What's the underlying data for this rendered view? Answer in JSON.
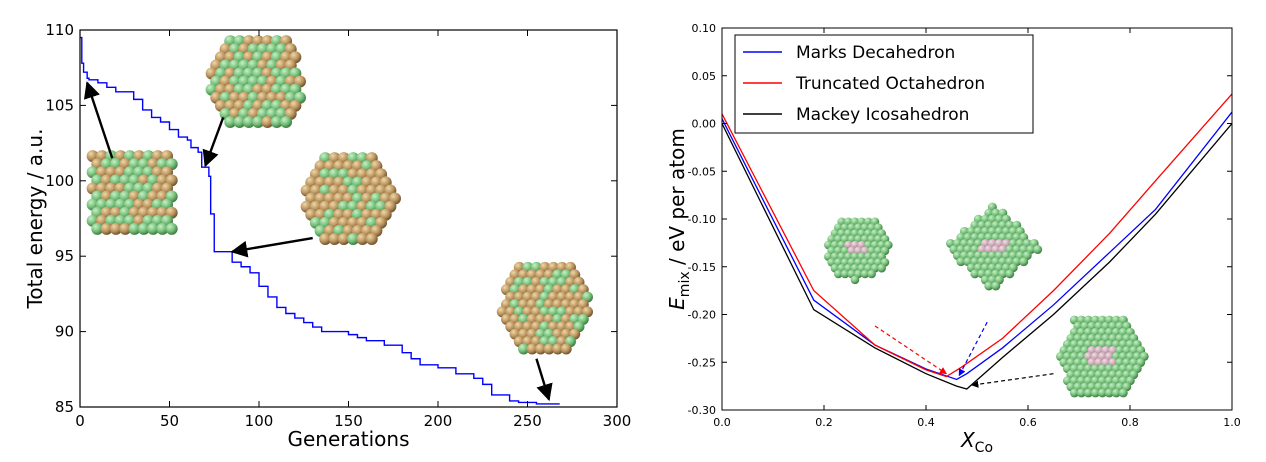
{
  "chart_data": [
    {
      "type": "line",
      "title": "",
      "xlabel": "Generations",
      "ylabel": "Total energy / a.u.",
      "xlim": [
        0,
        300
      ],
      "ylim": [
        85,
        110
      ],
      "xticks": [
        "0",
        "50",
        "100",
        "150",
        "200",
        "250",
        "300"
      ],
      "yticks": [
        "85",
        "90",
        "95",
        "100",
        "105",
        "110"
      ],
      "grid": false,
      "series": [
        {
          "color": "#0000ff",
          "x": [
            0,
            1,
            2,
            4,
            5,
            8,
            10,
            15,
            20,
            22,
            30,
            35,
            40,
            45,
            50,
            55,
            60,
            62,
            66,
            68,
            70,
            72,
            73,
            75,
            80,
            85,
            90,
            95,
            100,
            105,
            110,
            115,
            120,
            125,
            130,
            135,
            150,
            155,
            160,
            170,
            180,
            185,
            190,
            200,
            210,
            220,
            225,
            230,
            240,
            245,
            250,
            255,
            260,
            268
          ],
          "values": [
            109.5,
            107.8,
            107.2,
            106.8,
            106.7,
            106.7,
            106.5,
            106.2,
            105.9,
            105.9,
            105.4,
            104.7,
            104.2,
            103.9,
            103.4,
            102.9,
            102.7,
            102.2,
            101.9,
            100.9,
            100.9,
            100.3,
            97.8,
            95.3,
            95.3,
            94.6,
            94.3,
            93.9,
            93.0,
            92.3,
            91.6,
            91.2,
            90.9,
            90.6,
            90.3,
            90.0,
            89.8,
            89.6,
            89.4,
            89.1,
            88.6,
            88.2,
            87.8,
            87.6,
            87.2,
            86.9,
            86.5,
            85.8,
            85.4,
            85.3,
            85.3,
            85.2,
            85.2,
            85.2
          ]
        }
      ],
      "annotations": [
        {
          "kind": "arrow",
          "from": [
            18,
            101.5
          ],
          "to": [
            4,
            106.5
          ]
        },
        {
          "kind": "arrow",
          "from": [
            80,
            104.2
          ],
          "to": [
            70,
            101.0
          ]
        },
        {
          "kind": "arrow",
          "from": [
            130,
            96.2
          ],
          "to": [
            85,
            95.3
          ]
        },
        {
          "kind": "arrow",
          "from": [
            255,
            88.2
          ],
          "to": [
            262,
            85.5
          ]
        }
      ],
      "insets": [
        {
          "name": "cube-cluster",
          "style": "cube"
        },
        {
          "name": "top-cluster",
          "style": "hex"
        },
        {
          "name": "middle-cluster",
          "style": "hex"
        },
        {
          "name": "final-cluster",
          "style": "hex"
        }
      ]
    },
    {
      "type": "line",
      "title": "",
      "xlabel": "X_Co",
      "ylabel": "E_mix / eV per atom",
      "xlim": [
        0.0,
        1.0
      ],
      "ylim": [
        -0.3,
        0.1
      ],
      "xticks": [
        "0.0",
        "0.2",
        "0.4",
        "0.6",
        "0.8",
        "1.0"
      ],
      "yticks": [
        "0.10",
        "0.05",
        "0.00",
        "-0.05",
        "-0.10",
        "-0.15",
        "-0.20",
        "-0.25",
        "-0.30"
      ],
      "grid": false,
      "legend": {
        "placement": "top-left"
      },
      "series": [
        {
          "name": "Marks Decahedron",
          "color": "#0000ff",
          "x": [
            0.0,
            0.18,
            0.3,
            0.4,
            0.46,
            0.48,
            0.55,
            0.65,
            0.76,
            0.85,
            1.0
          ],
          "values": [
            0.005,
            -0.185,
            -0.232,
            -0.257,
            -0.268,
            -0.262,
            -0.235,
            -0.19,
            -0.135,
            -0.09,
            0.012
          ]
        },
        {
          "name": "Truncated Octahedron",
          "color": "#ff0000",
          "x": [
            0.0,
            0.18,
            0.3,
            0.4,
            0.44,
            0.47,
            0.55,
            0.65,
            0.76,
            0.85,
            1.0
          ],
          "values": [
            0.01,
            -0.175,
            -0.232,
            -0.258,
            -0.265,
            -0.255,
            -0.225,
            -0.175,
            -0.115,
            -0.06,
            0.031
          ]
        },
        {
          "name": "Mackey Icosahedron",
          "color": "#000000",
          "x": [
            0.0,
            0.18,
            0.3,
            0.4,
            0.46,
            0.48,
            0.55,
            0.65,
            0.76,
            0.85,
            1.0
          ],
          "values": [
            0.0,
            -0.195,
            -0.235,
            -0.262,
            -0.275,
            -0.278,
            -0.245,
            -0.2,
            -0.145,
            -0.095,
            0.0
          ]
        }
      ],
      "annotations": [
        {
          "kind": "dashed-arrow",
          "color": "#ff0000",
          "from": [
            0.3,
            -0.212
          ],
          "to": [
            0.44,
            -0.262
          ]
        },
        {
          "kind": "dashed-arrow",
          "color": "#0000ff",
          "from": [
            0.52,
            -0.208
          ],
          "to": [
            0.465,
            -0.264
          ]
        },
        {
          "kind": "dashed-arrow",
          "color": "#000000",
          "from": [
            0.65,
            -0.262
          ],
          "to": [
            0.49,
            -0.274
          ]
        }
      ],
      "insets": [
        {
          "name": "green-sphere-cluster-left",
          "style": "round"
        },
        {
          "name": "green-sphere-cluster-diamond",
          "style": "diamond"
        },
        {
          "name": "green-sphere-cluster-right",
          "style": "hex"
        }
      ]
    }
  ]
}
